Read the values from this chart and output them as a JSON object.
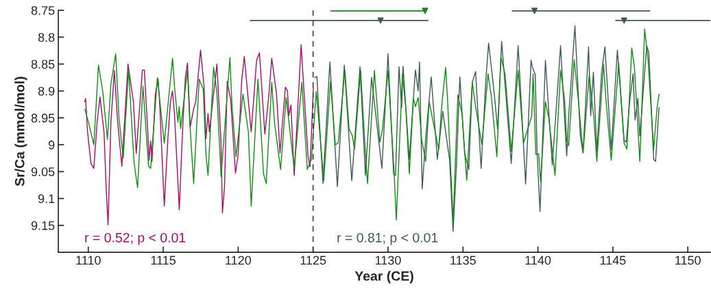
{
  "chart_data": {
    "type": "line",
    "xlabel": "Year (CE)",
    "ylabel": "Sr/Ca (mmol/mol)",
    "xlim": [
      1108,
      1151.5
    ],
    "xticks": [
      1110,
      1115,
      1120,
      1125,
      1130,
      1135,
      1140,
      1145,
      1150
    ],
    "ylim": [
      9.2,
      8.75
    ],
    "yticks": [
      8.75,
      8.8,
      8.85,
      8.9,
      8.95,
      9,
      9.05,
      9.1,
      9.15
    ],
    "grid": false,
    "legend": false,
    "line_style": "solid",
    "marker": "none",
    "series": [
      {
        "color": "#9c0f6a",
        "x": [
          1109.77,
          1109.82,
          1109.95,
          1110.18,
          1110.37,
          1110.59,
          1110.78,
          1111.05,
          1111.19,
          1111.32,
          1111.51,
          1111.74,
          1111.96,
          1112.24,
          1112.65,
          1113.01,
          1113.2,
          1113.61,
          1113.74,
          1113.97,
          1114.06,
          1114.16,
          1114.25,
          1114.47,
          1114.66,
          1114.75,
          1115.07,
          1115.3,
          1115.48,
          1115.62,
          1115.75,
          1116.07,
          1116.3,
          1116.48,
          1116.62,
          1116.8,
          1117.03,
          1117.17,
          1117.49,
          1117.72,
          1117.85,
          1117.99,
          1118.08,
          1118.58,
          1118.86,
          1118.95,
          1119.09,
          1119.27,
          1119.5,
          1119.82,
          1120.0,
          1120.23,
          1120.41,
          1120.87,
          1121.23,
          1121.42,
          1121.78,
          1122.05,
          1122.24,
          1122.56,
          1122.79,
          1123.15,
          1123.29,
          1123.38,
          1123.52,
          1123.74,
          1124.2,
          1124.66,
          1124.79,
          1125.02
        ],
        "values": [
          8.92,
          8.914,
          8.976,
          9.035,
          9.044,
          8.958,
          8.911,
          8.977,
          9.078,
          9.149,
          8.958,
          8.862,
          8.958,
          9.04,
          8.85,
          8.92,
          9.016,
          8.861,
          8.861,
          8.976,
          9.029,
          8.993,
          9.031,
          8.907,
          8.878,
          8.916,
          9.114,
          8.993,
          8.92,
          8.9,
          8.942,
          9.121,
          8.967,
          8.874,
          8.848,
          8.967,
          8.933,
          8.92,
          8.824,
          8.891,
          8.989,
          8.942,
          8.976,
          8.85,
          8.997,
          9.127,
          9.078,
          8.882,
          8.916,
          9.053,
          9.018,
          8.882,
          8.836,
          8.976,
          8.843,
          8.829,
          8.98,
          8.907,
          8.839,
          8.906,
          9.015,
          8.893,
          8.9,
          8.946,
          8.926,
          9.057,
          8.814,
          9.021,
          9.041,
          8.894
        ]
      },
      {
        "color": "#3e5757",
        "x": [
          1125.11,
          1125.25,
          1125.66,
          1126.12,
          1126.62,
          1127.08,
          1127.58,
          1128.13,
          1128.49,
          1128.9,
          1129.59,
          1130.0,
          1130.37,
          1130.5,
          1130.73,
          1130.91,
          1131.0,
          1131.19,
          1131.42,
          1131.69,
          1131.83,
          1132.01,
          1132.1,
          1132.28,
          1132.51,
          1132.88,
          1133.29,
          1133.65,
          1134.11,
          1134.34,
          1134.57,
          1134.79,
          1135.11,
          1135.39,
          1135.62,
          1135.84,
          1136.21,
          1136.53,
          1136.71,
          1137.08,
          1137.31,
          1137.58,
          1138.22,
          1138.68,
          1139.18,
          1139.54,
          1139.63,
          1139.82,
          1139.95,
          1140.14,
          1140.5,
          1140.96,
          1141.51,
          1141.92,
          1142.05,
          1142.47,
          1142.83,
          1143.01,
          1143.38,
          1143.52,
          1143.7,
          1143.93,
          1144.25,
          1144.47,
          1144.89,
          1145.3,
          1145.75,
          1145.89,
          1146.12,
          1146.35,
          1146.48,
          1146.67,
          1146.8,
          1147.26,
          1147.4,
          1147.72,
          1147.85,
          1148.08
        ],
        "values": [
          8.875,
          8.873,
          9.072,
          8.846,
          9.078,
          8.852,
          9.067,
          8.855,
          9.057,
          8.875,
          9.044,
          8.831,
          9.054,
          9.057,
          8.855,
          8.931,
          8.854,
          8.933,
          9.027,
          8.914,
          8.861,
          8.9,
          8.846,
          9.082,
          8.989,
          8.874,
          9.027,
          8.938,
          9.029,
          9.161,
          9.035,
          8.874,
          9.016,
          9.046,
          8.884,
          8.864,
          9.044,
          8.878,
          8.811,
          8.903,
          8.971,
          8.808,
          9.035,
          8.816,
          9.073,
          8.843,
          8.856,
          8.869,
          9.018,
          9.124,
          8.843,
          9.038,
          8.816,
          9.021,
          8.948,
          8.779,
          8.984,
          9.015,
          8.818,
          8.946,
          8.865,
          9.012,
          8.865,
          8.818,
          9.009,
          8.824,
          8.992,
          8.995,
          8.92,
          8.868,
          8.954,
          8.914,
          8.984,
          8.816,
          8.829,
          9.027,
          9.031,
          8.931
        ]
      },
      {
        "color": "#138a13",
        "x": [
          1109.77,
          1110.0,
          1110.37,
          1110.68,
          1110.96,
          1111.28,
          1111.51,
          1111.83,
          1112.05,
          1112.33,
          1112.69,
          1112.88,
          1113.06,
          1113.29,
          1113.65,
          1114.02,
          1114.16,
          1114.61,
          1115.07,
          1115.43,
          1115.62,
          1115.75,
          1115.98,
          1116.07,
          1116.16,
          1116.62,
          1116.76,
          1117.03,
          1117.4,
          1117.67,
          1117.85,
          1117.99,
          1118.36,
          1118.58,
          1118.86,
          1119.45,
          1119.59,
          1119.86,
          1120.32,
          1120.68,
          1120.87,
          1121.32,
          1121.69,
          1121.87,
          1122.24,
          1122.42,
          1122.83,
          1123.2,
          1123.74,
          1124.25,
          1124.61,
          1124.89,
          1125.21,
          1125.71,
          1126.16,
          1126.48,
          1126.67,
          1127.12,
          1127.4,
          1127.63,
          1127.76,
          1128.17,
          1128.45,
          1128.63,
          1129.09,
          1129.45,
          1129.63,
          1130.0,
          1130.41,
          1130.55,
          1130.96,
          1131.19,
          1131.42,
          1131.69,
          1131.83,
          1132.01,
          1132.24,
          1132.51,
          1132.74,
          1133.38,
          1133.56,
          1133.84,
          1133.97,
          1134.34,
          1134.66,
          1134.93,
          1135.25,
          1135.62,
          1135.84,
          1136.26,
          1136.67,
          1136.89,
          1137.26,
          1137.53,
          1137.81,
          1138.22,
          1138.68,
          1139.04,
          1139.59,
          1139.68,
          1139.86,
          1140.05,
          1140.18,
          1140.5,
          1140.73,
          1141.14,
          1141.51,
          1141.78,
          1141.92,
          1142.05,
          1142.42,
          1142.69,
          1143.01,
          1143.42,
          1143.74,
          1143.93,
          1144.38,
          1144.52,
          1144.89,
          1145.39,
          1145.75,
          1145.94,
          1146.26,
          1146.44,
          1146.8,
          1147.12,
          1147.35,
          1147.72,
          1147.95,
          1148.08
        ],
        "values": [
          8.934,
          8.957,
          9.0,
          8.852,
          8.9,
          8.99,
          8.887,
          8.831,
          8.951,
          9.025,
          8.859,
          8.952,
          9.035,
          9.08,
          8.891,
          9.04,
          9.044,
          8.875,
          8.997,
          8.894,
          8.839,
          8.891,
          8.958,
          8.929,
          8.97,
          8.861,
          8.954,
          9.072,
          8.878,
          8.897,
          9.018,
          9.057,
          8.856,
          8.903,
          9.059,
          8.838,
          8.929,
          9.022,
          8.906,
          8.976,
          9.114,
          8.878,
          9.054,
          9.072,
          8.884,
          8.958,
          9.046,
          8.912,
          9.044,
          8.884,
          9.046,
          9.027,
          8.901,
          9.066,
          8.882,
          9.0,
          8.997,
          8.862,
          8.971,
          8.984,
          9.009,
          8.862,
          8.997,
          9.072,
          8.862,
          8.995,
          8.971,
          8.862,
          9.054,
          9.14,
          8.869,
          8.933,
          9.054,
          8.914,
          8.929,
          8.912,
          8.99,
          9.031,
          8.92,
          9.009,
          8.935,
          8.856,
          8.916,
          9.142,
          8.907,
          8.942,
          9.066,
          8.884,
          8.929,
          9.0,
          8.868,
          8.91,
          9.022,
          8.837,
          8.869,
          9.012,
          8.862,
          8.997,
          8.946,
          8.868,
          9.018,
          9.017,
          9.069,
          8.92,
          8.951,
          9.057,
          8.861,
          8.916,
          8.993,
          9.002,
          8.842,
          8.916,
          9.015,
          8.871,
          8.952,
          9.031,
          8.85,
          8.91,
          9.029,
          8.848,
          8.997,
          9.008,
          8.82,
          8.856,
          9.031,
          8.785,
          8.843,
          9.009,
          8.931,
          8.906
        ]
      },
      {
        "type": "scatter",
        "marker": "triangle",
        "color": "#138a13",
        "x": [
          1132.47
        ],
        "values": [
          8.751
        ],
        "xerrors": [
          [
            1126.16,
            1132.56
          ]
        ]
      },
      {
        "type": "scatter",
        "marker": "triangle",
        "color": "#3e5757",
        "x": [
          1129.5,
          1139.77,
          1145.75
        ],
        "values": [
          8.769,
          8.751,
          8.769
        ],
        "xerrors": [
          [
            1120.78,
            1132.69
          ],
          [
            1138.26,
            1147.49
          ],
          [
            1145.16,
            1151.5
          ]
        ]
      }
    ],
    "ref_lines": [
      {
        "axis": "x",
        "value": 1125,
        "color": "#404040",
        "line_style": "dashed"
      }
    ],
    "annotations": [
      "r = 0.52; p < 0.01",
      "r = 0.81; p < 0.01"
    ]
  }
}
